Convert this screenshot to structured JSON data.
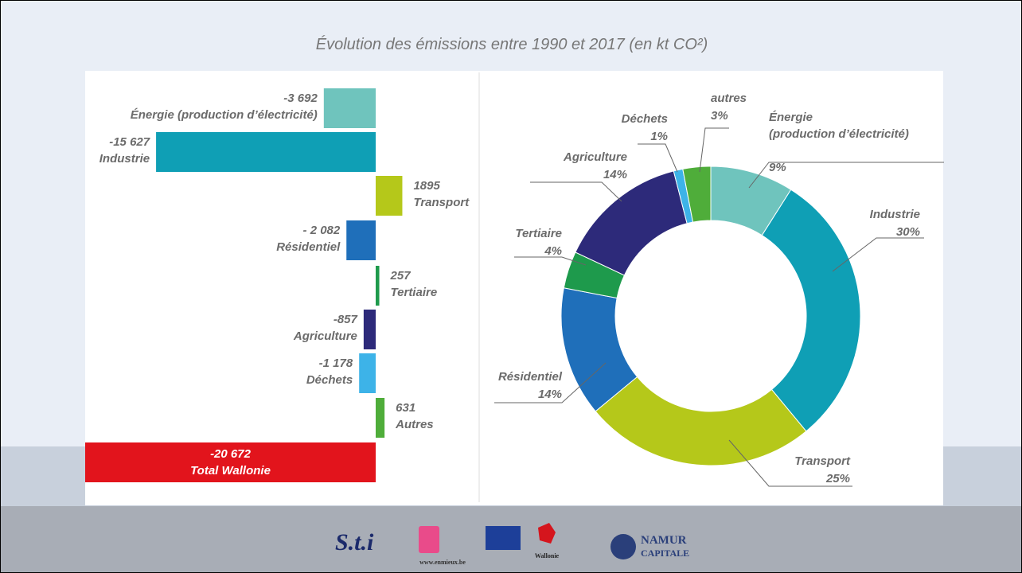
{
  "title": "Évolution des émissions entre 1990 et 2017 (en kt CO²)",
  "chart_data": [
    {
      "type": "bar",
      "orientation": "horizontal",
      "categories": [
        "Énergie (production d’électricité)",
        "Industrie",
        "Transport",
        "Résidentiel",
        "Tertiaire",
        "Agriculture",
        "Déchets",
        "Autres",
        "Total Wallonie"
      ],
      "values": [
        -3692,
        -15627,
        1895,
        -2082,
        257,
        -857,
        -1178,
        631,
        -20672
      ],
      "value_labels": [
        "-3 692",
        "-15 627",
        "1895",
        "- 2 082",
        "257",
        "-857",
        "-1 178",
        "631",
        "-20 672"
      ],
      "colors": [
        "#6fc4bd",
        "#0f9fb5",
        "#b5c81a",
        "#1f6fba",
        "#1e9a4c",
        "#2d2a7a",
        "#3db3e8",
        "#4fad3a",
        "#e2141c"
      ]
    },
    {
      "type": "pie",
      "donut": true,
      "categories": [
        "Énergie\n(production d’électricité)",
        "Industrie",
        "Transport",
        "Résidentiel",
        "Tertiaire",
        "Agriculture",
        "Déchets",
        "autres"
      ],
      "values": [
        9,
        30,
        25,
        14,
        4,
        14,
        1,
        3
      ],
      "value_labels": [
        "9%",
        "30%",
        "25%",
        "14%",
        "4%",
        "14%",
        "1%",
        "3%"
      ],
      "colors": [
        "#6fc4bd",
        "#0f9fb5",
        "#b5c81a",
        "#1f6fba",
        "#1e9a4c",
        "#2d2a7a",
        "#3db3e8",
        "#4fad3a"
      ]
    }
  ],
  "footer": {
    "logos": [
      "S.t.i",
      "www.enmieux.be",
      "Wallonie",
      "NAMUR",
      "CAPITALE"
    ]
  }
}
